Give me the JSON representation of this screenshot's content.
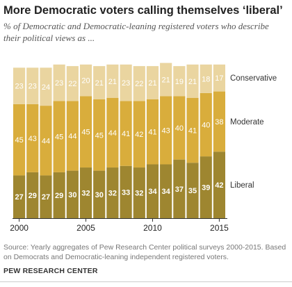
{
  "title": "More Democratic voters calling themselves ‘liberal’",
  "subtitle": "% of Democratic and Democratic-leaning registered voters who describe their political views as ...",
  "source": "Source: Yearly aggregates of Pew Research Center political surveys 2000-2015. Based on Democrats and Democratic-leaning independent registered voters.",
  "credit": "PEW RESEARCH CENTER",
  "colors": {
    "liberal": "#9e8630",
    "moderate": "#d9ad3c",
    "conservative": "#ead5a0",
    "axis": "#333333"
  },
  "chart_data": {
    "type": "bar",
    "stacked": true,
    "categories": [
      "2000",
      "2001",
      "2002",
      "2003",
      "2004",
      "2005",
      "2006",
      "2007",
      "2008",
      "2009",
      "2010",
      "2011",
      "2012",
      "2013",
      "2014",
      "2015"
    ],
    "x_tick_labels": [
      "2000",
      "2005",
      "2010",
      "2015"
    ],
    "series": [
      {
        "name": "Liberal",
        "values": [
          27,
          29,
          27,
          29,
          30,
          32,
          30,
          32,
          33,
          32,
          34,
          34,
          37,
          35,
          39,
          42
        ]
      },
      {
        "name": "Moderate",
        "values": [
          45,
          43,
          44,
          45,
          44,
          45,
          45,
          44,
          41,
          42,
          41,
          43,
          40,
          41,
          40,
          38
        ]
      },
      {
        "name": "Conservative",
        "values": [
          23,
          23,
          24,
          23,
          22,
          20,
          21,
          21,
          23,
          22,
          21,
          21,
          19,
          21,
          18,
          17
        ]
      }
    ],
    "ylim": [
      0,
      100
    ],
    "xlabel": "",
    "ylabel": "",
    "grid": false,
    "legend": "right"
  }
}
